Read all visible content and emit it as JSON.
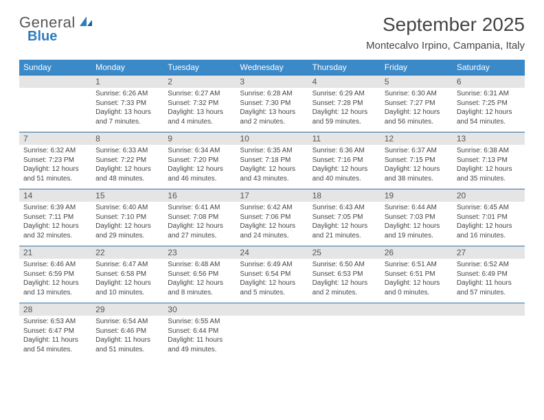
{
  "brand": {
    "general": "General",
    "blue": "Blue"
  },
  "title": "September 2025",
  "location": "Montecalvo Irpino, Campania, Italy",
  "colors": {
    "header_bg": "#3a89c9",
    "header_text": "#ffffff",
    "daynum_bg": "#e5e5e5",
    "daynum_border": "#2f6fa3",
    "body_text": "#444444",
    "brand_blue": "#2f7bbf",
    "brand_gray": "#555555"
  },
  "dow": [
    "Sunday",
    "Monday",
    "Tuesday",
    "Wednesday",
    "Thursday",
    "Friday",
    "Saturday"
  ],
  "weeks": [
    {
      "nums": [
        "",
        "1",
        "2",
        "3",
        "4",
        "5",
        "6"
      ],
      "cells": [
        null,
        {
          "sr": "6:26 AM",
          "ss": "7:33 PM",
          "dl": "13 hours and 7 minutes."
        },
        {
          "sr": "6:27 AM",
          "ss": "7:32 PM",
          "dl": "13 hours and 4 minutes."
        },
        {
          "sr": "6:28 AM",
          "ss": "7:30 PM",
          "dl": "13 hours and 2 minutes."
        },
        {
          "sr": "6:29 AM",
          "ss": "7:28 PM",
          "dl": "12 hours and 59 minutes."
        },
        {
          "sr": "6:30 AM",
          "ss": "7:27 PM",
          "dl": "12 hours and 56 minutes."
        },
        {
          "sr": "6:31 AM",
          "ss": "7:25 PM",
          "dl": "12 hours and 54 minutes."
        }
      ]
    },
    {
      "nums": [
        "7",
        "8",
        "9",
        "10",
        "11",
        "12",
        "13"
      ],
      "cells": [
        {
          "sr": "6:32 AM",
          "ss": "7:23 PM",
          "dl": "12 hours and 51 minutes."
        },
        {
          "sr": "6:33 AM",
          "ss": "7:22 PM",
          "dl": "12 hours and 48 minutes."
        },
        {
          "sr": "6:34 AM",
          "ss": "7:20 PM",
          "dl": "12 hours and 46 minutes."
        },
        {
          "sr": "6:35 AM",
          "ss": "7:18 PM",
          "dl": "12 hours and 43 minutes."
        },
        {
          "sr": "6:36 AM",
          "ss": "7:16 PM",
          "dl": "12 hours and 40 minutes."
        },
        {
          "sr": "6:37 AM",
          "ss": "7:15 PM",
          "dl": "12 hours and 38 minutes."
        },
        {
          "sr": "6:38 AM",
          "ss": "7:13 PM",
          "dl": "12 hours and 35 minutes."
        }
      ]
    },
    {
      "nums": [
        "14",
        "15",
        "16",
        "17",
        "18",
        "19",
        "20"
      ],
      "cells": [
        {
          "sr": "6:39 AM",
          "ss": "7:11 PM",
          "dl": "12 hours and 32 minutes."
        },
        {
          "sr": "6:40 AM",
          "ss": "7:10 PM",
          "dl": "12 hours and 29 minutes."
        },
        {
          "sr": "6:41 AM",
          "ss": "7:08 PM",
          "dl": "12 hours and 27 minutes."
        },
        {
          "sr": "6:42 AM",
          "ss": "7:06 PM",
          "dl": "12 hours and 24 minutes."
        },
        {
          "sr": "6:43 AM",
          "ss": "7:05 PM",
          "dl": "12 hours and 21 minutes."
        },
        {
          "sr": "6:44 AM",
          "ss": "7:03 PM",
          "dl": "12 hours and 19 minutes."
        },
        {
          "sr": "6:45 AM",
          "ss": "7:01 PM",
          "dl": "12 hours and 16 minutes."
        }
      ]
    },
    {
      "nums": [
        "21",
        "22",
        "23",
        "24",
        "25",
        "26",
        "27"
      ],
      "cells": [
        {
          "sr": "6:46 AM",
          "ss": "6:59 PM",
          "dl": "12 hours and 13 minutes."
        },
        {
          "sr": "6:47 AM",
          "ss": "6:58 PM",
          "dl": "12 hours and 10 minutes."
        },
        {
          "sr": "6:48 AM",
          "ss": "6:56 PM",
          "dl": "12 hours and 8 minutes."
        },
        {
          "sr": "6:49 AM",
          "ss": "6:54 PM",
          "dl": "12 hours and 5 minutes."
        },
        {
          "sr": "6:50 AM",
          "ss": "6:53 PM",
          "dl": "12 hours and 2 minutes."
        },
        {
          "sr": "6:51 AM",
          "ss": "6:51 PM",
          "dl": "12 hours and 0 minutes."
        },
        {
          "sr": "6:52 AM",
          "ss": "6:49 PM",
          "dl": "11 hours and 57 minutes."
        }
      ]
    },
    {
      "nums": [
        "28",
        "29",
        "30",
        "",
        "",
        "",
        ""
      ],
      "cells": [
        {
          "sr": "6:53 AM",
          "ss": "6:47 PM",
          "dl": "11 hours and 54 minutes."
        },
        {
          "sr": "6:54 AM",
          "ss": "6:46 PM",
          "dl": "11 hours and 51 minutes."
        },
        {
          "sr": "6:55 AM",
          "ss": "6:44 PM",
          "dl": "11 hours and 49 minutes."
        },
        null,
        null,
        null,
        null
      ]
    }
  ],
  "labels": {
    "sunrise": "Sunrise:",
    "sunset": "Sunset:",
    "daylight": "Daylight:"
  }
}
